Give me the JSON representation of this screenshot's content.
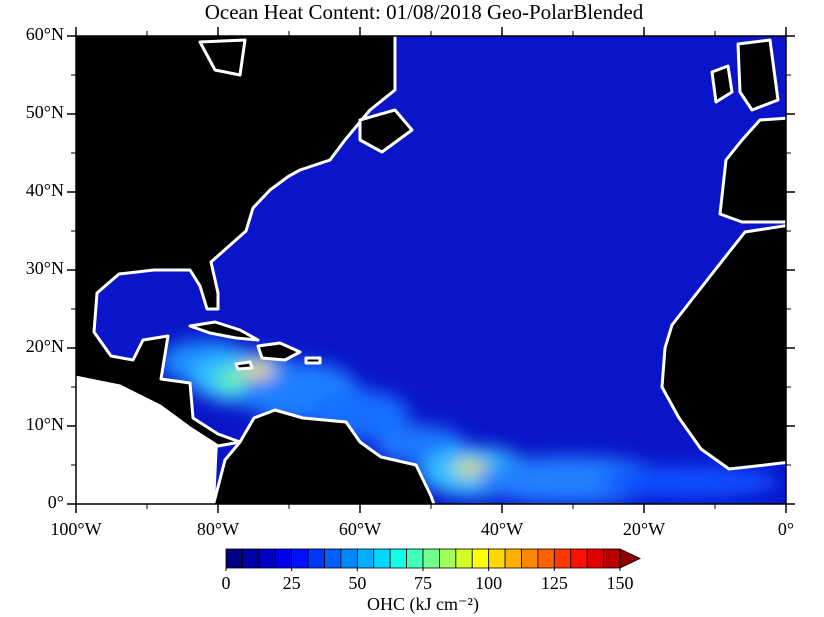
{
  "chart_data": {
    "type": "map",
    "title": "Ocean Heat Content: 01/08/2018 Geo-PolarBlended",
    "xlim": [
      -100,
      0
    ],
    "ylim": [
      0,
      60
    ],
    "xticks": [
      {
        "value": -100,
        "label": "100°W"
      },
      {
        "value": -80,
        "label": "80°W"
      },
      {
        "value": -60,
        "label": "60°W"
      },
      {
        "value": -40,
        "label": "40°W"
      },
      {
        "value": -20,
        "label": "20°W"
      },
      {
        "value": 0,
        "label": "0°"
      }
    ],
    "yticks": [
      {
        "value": 0,
        "label": "0°"
      },
      {
        "value": 10,
        "label": "10°N"
      },
      {
        "value": 20,
        "label": "20°N"
      },
      {
        "value": 30,
        "label": "30°N"
      },
      {
        "value": 40,
        "label": "40°N"
      },
      {
        "value": 50,
        "label": "50°N"
      },
      {
        "value": 60,
        "label": "60°N"
      }
    ],
    "x_minor_ticks": [
      -90,
      -70,
      -50,
      -30,
      -10
    ],
    "y_minor_ticks": [
      5,
      15,
      25,
      35,
      45,
      55
    ],
    "colorbar": {
      "range": [
        0,
        150
      ],
      "ticks": [
        0,
        25,
        50,
        75,
        100,
        125,
        150
      ],
      "label": "OHC (kJ cm⁻²)",
      "extend": "max",
      "colors": [
        "#000080",
        "#0000a8",
        "#0000c8",
        "#0000e8",
        "#0010ff",
        "#0038ff",
        "#0060ff",
        "#0088ff",
        "#00b0ff",
        "#00d8ff",
        "#10ffe8",
        "#40ffb8",
        "#70ff88",
        "#a0ff58",
        "#d0ff28",
        "#ffff00",
        "#ffd800",
        "#ffb000",
        "#ff8800",
        "#ff6000",
        "#ff3800",
        "#ff1000",
        "#e00000",
        "#b80000"
      ],
      "extend_color": "#900000"
    }
  }
}
